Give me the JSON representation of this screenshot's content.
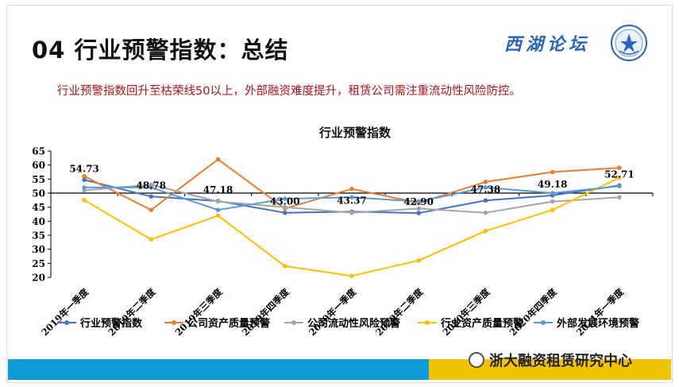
{
  "header": {
    "title": "04 行业预警指数：总结",
    "brand": "西湖论坛",
    "logo_icon": "association-emblem-icon"
  },
  "subtitle": "行业预警指数回升至枯荣线50以上，外部融资难度提升，租赁公司需注重流动性风险防控。",
  "footer": {
    "watermark": "浙大融资租赁研究中心",
    "watermark_icon": "wechat-icon",
    "colors": {
      "left": "#0d9cd8",
      "right": "#f2c200"
    }
  },
  "chart_data": {
    "type": "line",
    "title": "行业预警指数",
    "categories": [
      "2019年一季度",
      "2019年二季度",
      "2019年三季度",
      "2019年四季度",
      "2020年一季度",
      "2020年二季度",
      "2020年三季度",
      "2020年四季度",
      "2021年一季度"
    ],
    "ylim": [
      20,
      65
    ],
    "yticks": [
      20,
      25,
      30,
      35,
      40,
      45,
      50,
      55,
      60,
      65
    ],
    "baseline": 50,
    "series": [
      {
        "name": "行业预警指数",
        "color": "#4472c4",
        "values": [
          54.73,
          48.78,
          47.18,
          43.0,
          43.37,
          42.9,
          47.38,
          49.18,
          52.71
        ],
        "labels": [
          "54.73",
          "48.78",
          "47.18",
          "43.00",
          "43.37",
          "42.90",
          "47.38",
          "49.18",
          "52.71"
        ]
      },
      {
        "name": "公司资产质量预警",
        "color": "#ed7d31",
        "values": [
          56.0,
          44.0,
          62.0,
          44.5,
          51.5,
          46.5,
          54.0,
          57.5,
          59.0
        ]
      },
      {
        "name": "公司流动性风险预警",
        "color": "#a5a5a5",
        "values": [
          51.0,
          53.0,
          47.0,
          45.0,
          43.0,
          44.5,
          43.0,
          47.0,
          48.5
        ]
      },
      {
        "name": "行业资产质量预警",
        "color": "#ffc000",
        "values": [
          47.5,
          33.5,
          42.0,
          24.0,
          20.5,
          26.0,
          36.5,
          44.0,
          55.5
        ]
      },
      {
        "name": "外部发展环境预警",
        "color": "#5b9bd5",
        "values": [
          52.0,
          52.0,
          44.0,
          48.0,
          48.5,
          47.0,
          52.0,
          50.0,
          52.5
        ]
      }
    ]
  }
}
